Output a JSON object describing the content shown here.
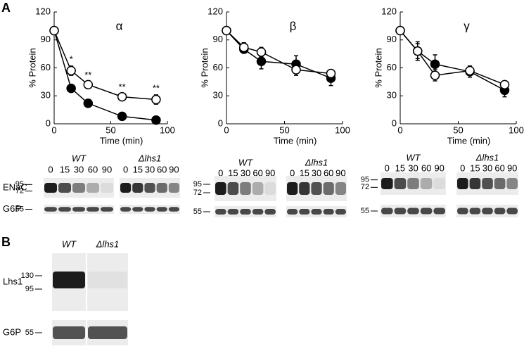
{
  "panels": [
    "A",
    "B"
  ],
  "chart_data": [
    {
      "type": "line",
      "title": "α",
      "xlabel": "Time (min)",
      "ylabel": "% Protein",
      "x": [
        0,
        15,
        30,
        60,
        90
      ],
      "xlim": [
        0,
        100
      ],
      "xticks": [
        0,
        50,
        100
      ],
      "ylim": [
        0,
        120
      ],
      "yticks": [
        0,
        30,
        60,
        90,
        120
      ],
      "series": [
        {
          "color": "#000000",
          "fill": "#000000",
          "values": [
            100,
            38,
            22,
            8,
            4
          ],
          "errors": [
            0,
            2,
            2,
            2,
            2
          ]
        },
        {
          "color": "#000000",
          "fill": "#ffffff",
          "values": [
            100,
            57,
            42,
            29,
            26
          ],
          "errors": [
            0,
            5,
            3,
            3,
            5
          ]
        }
      ],
      "annotations": [
        {
          "text": "*",
          "x": 15
        },
        {
          "text": "**",
          "x": 30
        },
        {
          "text": "**",
          "x": 60
        },
        {
          "text": "**",
          "x": 90
        }
      ]
    },
    {
      "type": "line",
      "title": "β",
      "xlabel": "Time (min)",
      "ylabel": "% Protein",
      "x": [
        0,
        15,
        30,
        60,
        90
      ],
      "xlim": [
        0,
        100
      ],
      "xticks": [
        0,
        50,
        100
      ],
      "ylim": [
        0,
        120
      ],
      "yticks": [
        0,
        30,
        60,
        90,
        120
      ],
      "series": [
        {
          "color": "#000000",
          "fill": "#000000",
          "values": [
            100,
            80,
            67,
            64,
            49
          ],
          "errors": [
            0,
            4,
            8,
            9,
            8
          ]
        },
        {
          "color": "#000000",
          "fill": "#ffffff",
          "values": [
            100,
            82,
            77,
            58,
            54
          ],
          "errors": [
            0,
            5,
            5,
            6,
            4
          ]
        }
      ]
    },
    {
      "type": "line",
      "title": "γ",
      "xlabel": "Time (min)",
      "ylabel": "% Protein",
      "x": [
        0,
        15,
        30,
        60,
        90
      ],
      "xlim": [
        0,
        100
      ],
      "xticks": [
        0,
        50,
        100
      ],
      "ylim": [
        0,
        120
      ],
      "yticks": [
        0,
        30,
        60,
        90,
        120
      ],
      "series": [
        {
          "color": "#000000",
          "fill": "#000000",
          "values": [
            100,
            78,
            64,
            56,
            36
          ],
          "errors": [
            0,
            10,
            10,
            6,
            7
          ]
        },
        {
          "color": "#000000",
          "fill": "#ffffff",
          "values": [
            100,
            78,
            52,
            57,
            42
          ],
          "errors": [
            0,
            8,
            6,
            5,
            4
          ]
        }
      ]
    }
  ],
  "blots": [
    {
      "groups": [
        {
          "label": "WT",
          "lanes": [
            "0",
            "15",
            "30",
            "60",
            "90"
          ]
        },
        {
          "label": "Δlhs1",
          "lanes": [
            "0",
            "15",
            "30",
            "60",
            "90"
          ]
        }
      ],
      "rows": [
        {
          "label": "ENaC",
          "markers": [
            "95",
            "72"
          ]
        },
        {
          "label": "G6P",
          "markers": [
            "55"
          ]
        }
      ]
    },
    {
      "groups": [
        {
          "label": "WT",
          "lanes": [
            "0",
            "15",
            "30",
            "60",
            "90"
          ]
        },
        {
          "label": "Δlhs1",
          "lanes": [
            "0",
            "15",
            "30",
            "60",
            "90"
          ]
        }
      ],
      "rows": [
        {
          "markers": [
            "95",
            "72"
          ]
        },
        {
          "markers": [
            "55"
          ]
        }
      ]
    },
    {
      "groups": [
        {
          "label": "WT",
          "lanes": [
            "0",
            "15",
            "30",
            "60",
            "90"
          ]
        },
        {
          "label": "Δlhs1",
          "lanes": [
            "0",
            "15",
            "30",
            "60",
            "90"
          ]
        }
      ],
      "rows": [
        {
          "markers": [
            "95",
            "72"
          ]
        },
        {
          "markers": [
            "55"
          ]
        }
      ]
    },
    {
      "groups": [
        {
          "label": "WT"
        },
        {
          "label": "Δlhs1"
        }
      ],
      "rows": [
        {
          "label": "Lhs1",
          "markers": [
            "130",
            "95"
          ]
        },
        {
          "label": "G6P",
          "markers": [
            "55"
          ]
        }
      ]
    }
  ]
}
